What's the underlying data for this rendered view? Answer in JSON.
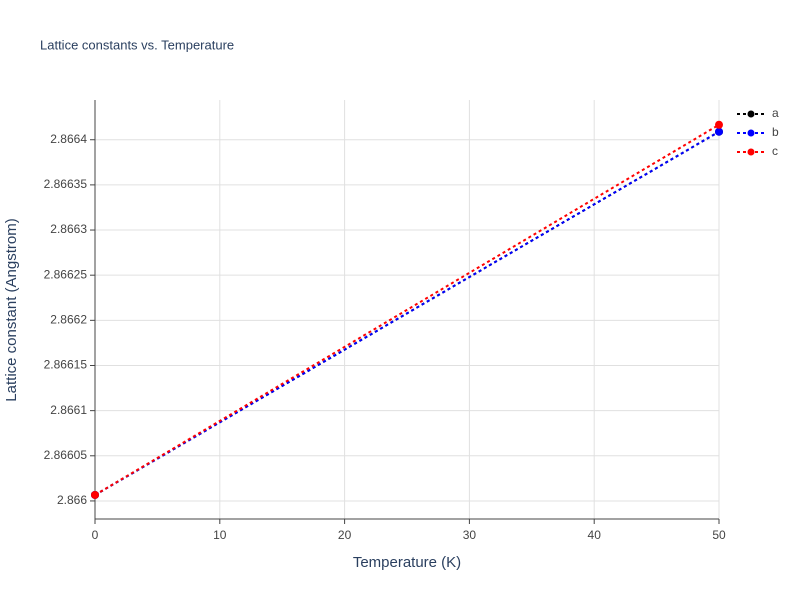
{
  "chart_data": {
    "type": "line",
    "title": "Lattice constants vs. Temperature",
    "x_label": "Temperature (K)",
    "y_label": "Lattice constant (Angstrom)",
    "x": [
      0,
      50
    ],
    "series": [
      {
        "name": "a",
        "color": "#000000",
        "values": [
          2.8660066,
          2.8664089
        ]
      },
      {
        "name": "b",
        "color": "#0000ff",
        "values": [
          2.8660066,
          2.8664089
        ]
      },
      {
        "name": "c",
        "color": "#ff0000",
        "values": [
          2.8660066,
          2.8664166
        ]
      }
    ],
    "xlim": [
      0,
      50
    ],
    "xticks": [
      0,
      10,
      20,
      30,
      40,
      50
    ],
    "ylim": [
      2.86598,
      2.866444
    ],
    "yticks": [
      2.866,
      2.86605,
      2.8661,
      2.86615,
      2.8662,
      2.86625,
      2.8663,
      2.86635,
      2.8664
    ],
    "grid": true
  }
}
